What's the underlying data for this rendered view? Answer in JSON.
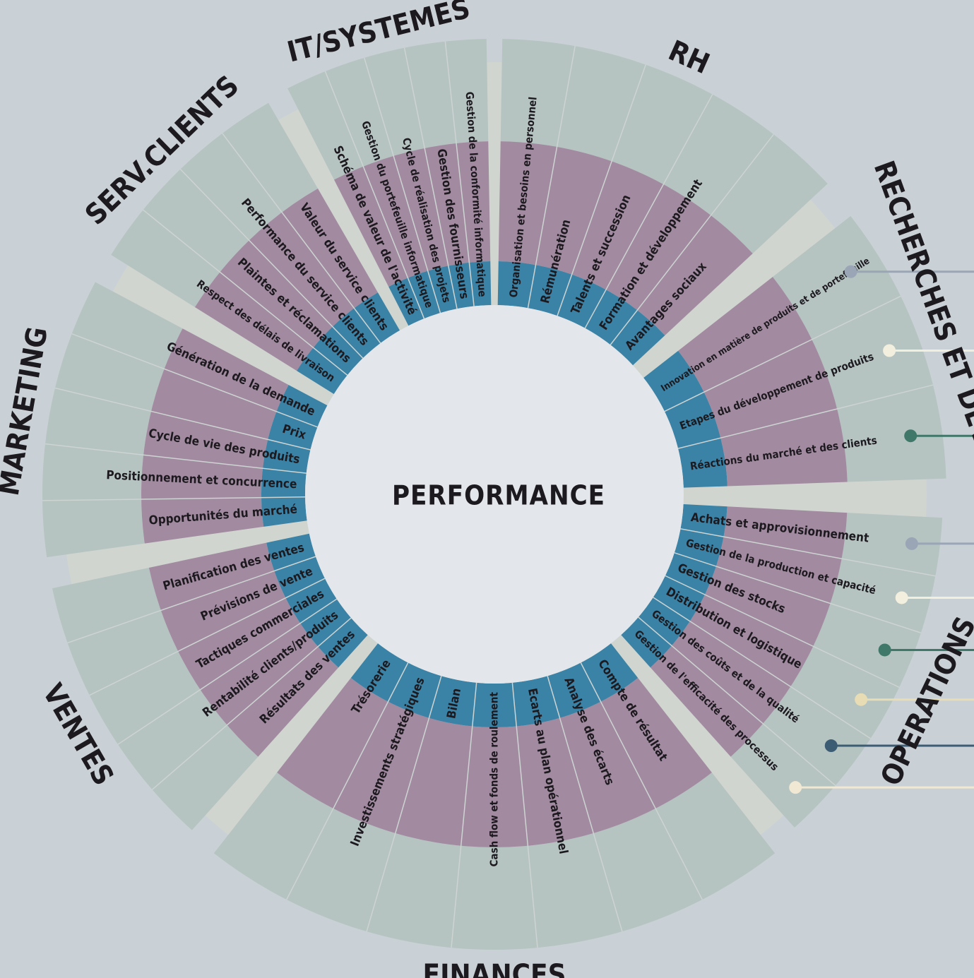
{
  "center": "PERFORMANCE",
  "sections": [
    {
      "title": "RH",
      "items": [
        "Organisation et besoins en personnel",
        "Rémunération",
        "Talents et succession",
        "Formation et développement",
        "Avantages sociaux"
      ]
    },
    {
      "title": "RECHERCHES ET DEVEPT.",
      "items": [
        "Innovation en matière de produits et de portefeuille",
        "Etapes du développement de produits",
        "Réactions du marché et des clients"
      ]
    },
    {
      "title": "OPERATIONS",
      "items": [
        "Achats et approvisionnement",
        "Gestion de la production et capacité",
        "Gestion des stocks",
        "Distribution et logistique",
        "Gestion des coûts et de la qualité",
        "Gestion de l'efficacité des processus"
      ]
    },
    {
      "title": "FINANCES",
      "items": [
        "Compte de résultat",
        "Analyse des écarts",
        "Ecarts au plan opérationnel",
        "Cash flow et fonds de roulement",
        "Bilan",
        "Investissements stratégiques",
        "Trésorerie"
      ]
    },
    {
      "title": "VENTES",
      "items": [
        "Résultats des ventes",
        "Rentabilité clients/produits",
        "Tactiques commerciales",
        "Prévisions de vente",
        "Planification des ventes"
      ]
    },
    {
      "title": "MARKETING",
      "items": [
        "Opportunités du marché",
        "Positionnement et concurrence",
        "Cycle de vie des produits",
        "Prix",
        "Génération de la demande"
      ]
    },
    {
      "title": "SERV.CLIENTS",
      "items": [
        "Respect des délais de livraison",
        "Plaintes et réclamations",
        "Performance du service clients",
        "Valeur du service clients"
      ]
    },
    {
      "title": "IT/SYSTEMES",
      "items": [
        "Schéma de valeur de l'activité",
        "Gestion du portefeuille informatique",
        "Cycle de réalisation des projets",
        "Gestion des fournisseurs",
        "Gestion de la conformité informatique"
      ]
    }
  ]
}
